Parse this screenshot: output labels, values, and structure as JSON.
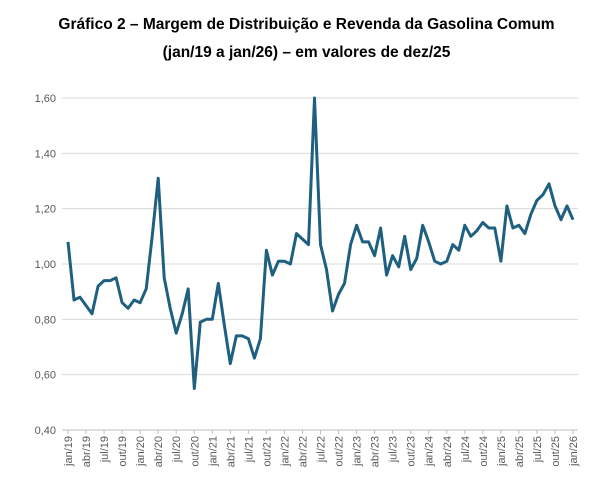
{
  "chart_data": {
    "type": "line",
    "title": "Gráfico 2 – Margem de Distribuição e Revenda da Gasolina Comum",
    "subtitle": "(jan/19 a jan/26) – em valores de dez/25",
    "xlabel": "",
    "ylabel": "",
    "ylim": [
      0.4,
      1.6
    ],
    "yticks": [
      "0,40",
      "0,60",
      "0,80",
      "1,00",
      "1,20",
      "1,40",
      "1,60"
    ],
    "xtick_labels": [
      "jan/19",
      "abr/19",
      "jul/19",
      "out/19",
      "jan/20",
      "abr/20",
      "jul/20",
      "out/20",
      "jan/21",
      "abr/21",
      "jul/21",
      "out/21",
      "jan/22",
      "abr/22",
      "jul/22",
      "out/22",
      "jan/23",
      "abr/23",
      "jul/23",
      "out/23",
      "jan/24",
      "abr/24",
      "jul/24",
      "out/24",
      "jan/25",
      "abr/25",
      "jul/25",
      "out/25",
      "jan/26"
    ],
    "grid": true,
    "color": "#1f5f7f",
    "series": [
      {
        "name": "Margem",
        "values": [
          1.08,
          0.87,
          0.88,
          0.85,
          0.82,
          0.92,
          0.94,
          0.94,
          0.95,
          0.86,
          0.84,
          0.87,
          0.86,
          0.91,
          1.1,
          1.31,
          0.95,
          0.84,
          0.75,
          0.82,
          0.91,
          0.55,
          0.79,
          0.8,
          0.8,
          0.93,
          0.78,
          0.64,
          0.74,
          0.74,
          0.73,
          0.66,
          0.73,
          1.05,
          0.96,
          1.01,
          1.01,
          1.0,
          1.11,
          1.09,
          1.07,
          1.6,
          1.07,
          0.98,
          0.83,
          0.89,
          0.93,
          1.07,
          1.14,
          1.08,
          1.08,
          1.03,
          1.13,
          0.96,
          1.03,
          0.99,
          1.1,
          0.98,
          1.02,
          1.14,
          1.08,
          1.01,
          1.0,
          1.01,
          1.07,
          1.05,
          1.14,
          1.1,
          1.12,
          1.15,
          1.13,
          1.13,
          1.01,
          1.21,
          1.13,
          1.14,
          1.11,
          1.18,
          1.23,
          1.25,
          1.29,
          1.21,
          1.16,
          1.21,
          1.16
        ]
      }
    ]
  }
}
